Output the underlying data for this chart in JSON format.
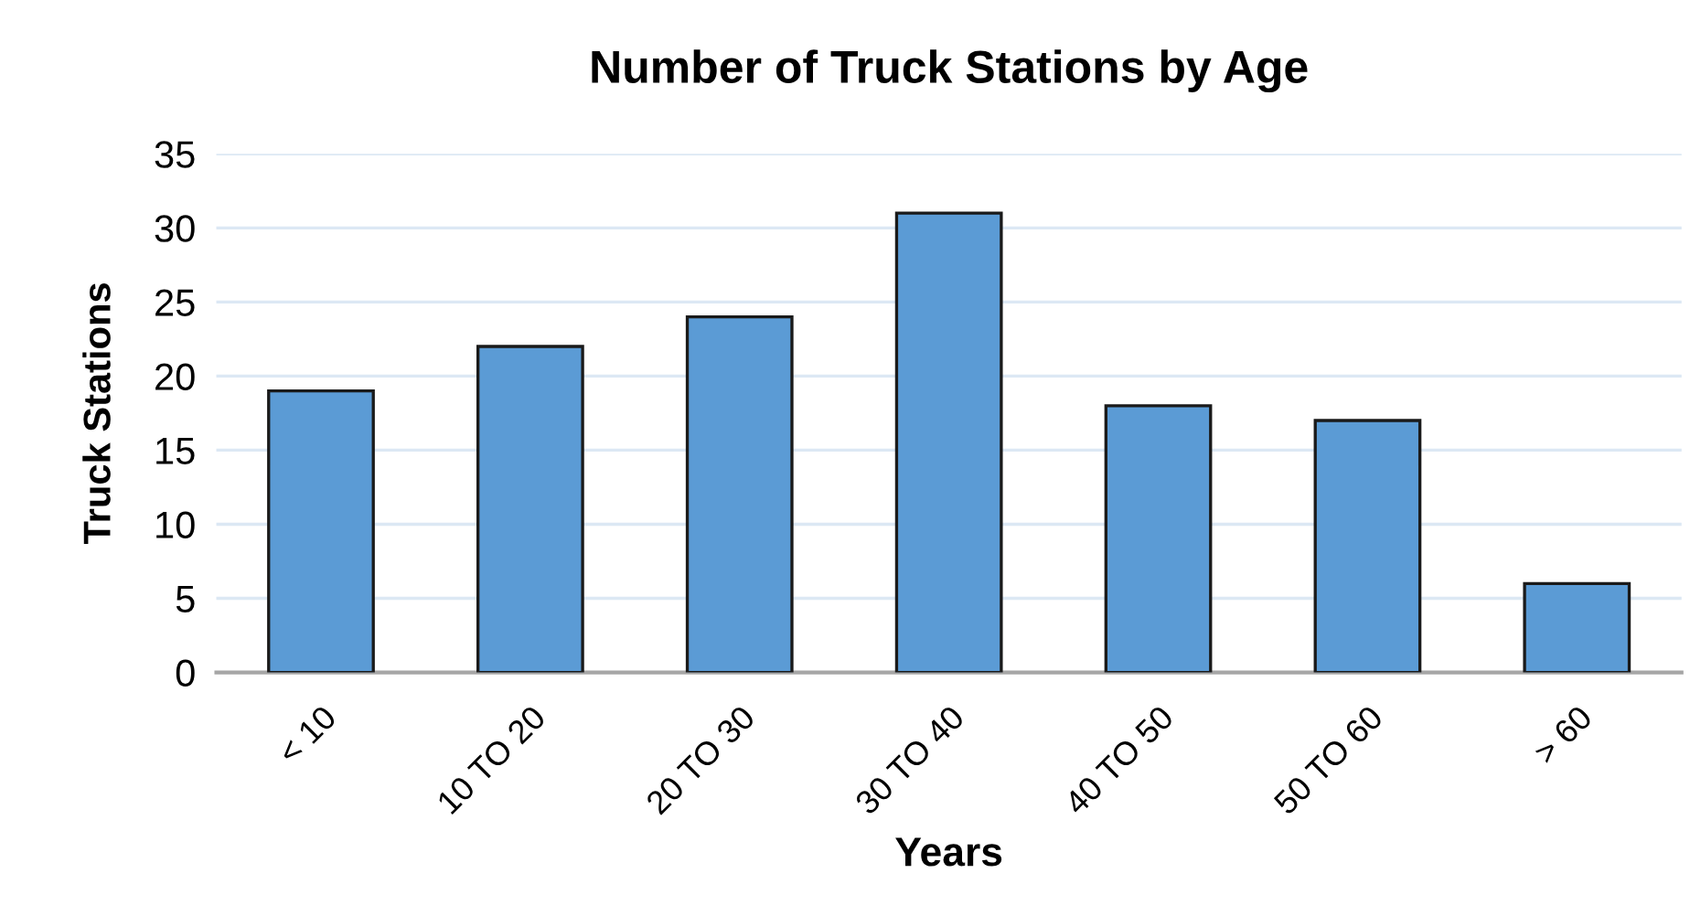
{
  "chart_data": {
    "type": "bar",
    "title": "Number of Truck Stations by Age",
    "xlabel": "Years",
    "ylabel": "Truck Stations",
    "categories": [
      "< 10",
      "10 TO 20",
      "20 TO 30",
      "30 TO 40",
      "40 TO 50",
      "50 TO 60",
      "> 60"
    ],
    "values": [
      19,
      22,
      24,
      31,
      18,
      17,
      6
    ],
    "color": "#5b9bd5",
    "ylim": [
      0,
      35
    ],
    "yticks": [
      0,
      5,
      10,
      15,
      20,
      25,
      30,
      35
    ],
    "grid": "y",
    "legend": false
  }
}
